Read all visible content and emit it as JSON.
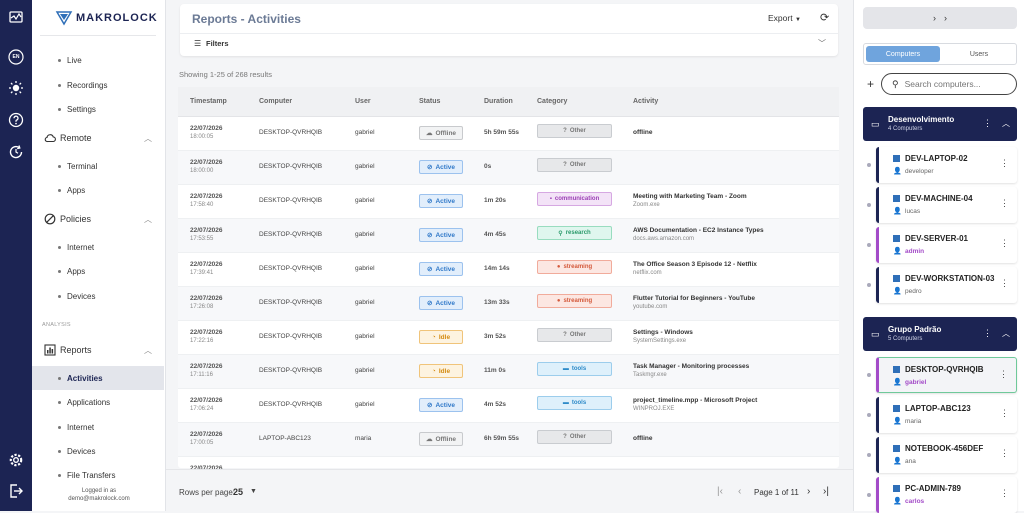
{
  "brand": {
    "name": "MAKROLOCK"
  },
  "rail": {
    "lang": "EN"
  },
  "sidebar": {
    "monitor_items": [
      "Live",
      "Recordings",
      "Settings"
    ],
    "remote": {
      "label": "Remote",
      "items": [
        "Terminal",
        "Apps"
      ]
    },
    "policies": {
      "label": "Policies",
      "items": [
        "Internet",
        "Apps",
        "Devices"
      ]
    },
    "section_label": "ANALYSIS",
    "reports": {
      "label": "Reports",
      "items": [
        "Activities",
        "Applications",
        "Internet",
        "Devices",
        "File Transfers"
      ]
    },
    "logged_label": "Logged in as",
    "logged_user": "demo@makrolock.com"
  },
  "header": {
    "title": "Reports - Activities",
    "export_label": "Export",
    "filters_label": "Filters"
  },
  "results_text": "Showing 1-25 of 268 results",
  "table": {
    "columns": [
      "Timestamp",
      "Computer",
      "User",
      "Status",
      "Duration",
      "Category",
      "Activity"
    ],
    "rows": [
      {
        "date": "22/07/2026",
        "time": "18:00:05",
        "computer": "DESKTOP-QVRHQIB",
        "user": "gabriel",
        "status": "Offline",
        "duration": "5h 59m 55s",
        "category": "Other",
        "activity": "offline",
        "detail": ""
      },
      {
        "date": "22/07/2026",
        "time": "18:00:00",
        "computer": "DESKTOP-QVRHQIB",
        "user": "gabriel",
        "status": "Active",
        "duration": "0s",
        "category": "Other",
        "activity": "",
        "detail": ""
      },
      {
        "date": "22/07/2026",
        "time": "17:58:40",
        "computer": "DESKTOP-QVRHQIB",
        "user": "gabriel",
        "status": "Active",
        "duration": "1m 20s",
        "category": "communication",
        "activity": "Meeting with Marketing Team - Zoom",
        "detail": "Zoom.exe"
      },
      {
        "date": "22/07/2026",
        "time": "17:53:55",
        "computer": "DESKTOP-QVRHQIB",
        "user": "gabriel",
        "status": "Active",
        "duration": "4m 45s",
        "category": "research",
        "activity": "AWS Documentation - EC2 Instance Types",
        "detail": "docs.aws.amazon.com"
      },
      {
        "date": "22/07/2026",
        "time": "17:39:41",
        "computer": "DESKTOP-QVRHQIB",
        "user": "gabriel",
        "status": "Active",
        "duration": "14m 14s",
        "category": "streaming",
        "activity": "The Office Season 3 Episode 12 - Netflix",
        "detail": "netflix.com"
      },
      {
        "date": "22/07/2026",
        "time": "17:26:08",
        "computer": "DESKTOP-QVRHQIB",
        "user": "gabriel",
        "status": "Active",
        "duration": "13m 33s",
        "category": "streaming",
        "activity": "Flutter Tutorial for Beginners - YouTube",
        "detail": "youtube.com"
      },
      {
        "date": "22/07/2026",
        "time": "17:22:16",
        "computer": "DESKTOP-QVRHQIB",
        "user": "gabriel",
        "status": "Idle",
        "duration": "3m 52s",
        "category": "Other",
        "activity": "Settings - Windows",
        "detail": "SystemSettings.exe"
      },
      {
        "date": "22/07/2026",
        "time": "17:11:16",
        "computer": "DESKTOP-QVRHQIB",
        "user": "gabriel",
        "status": "Idle",
        "duration": "11m 0s",
        "category": "tools",
        "activity": "Task Manager - Monitoring processes",
        "detail": "Taskmgr.exe"
      },
      {
        "date": "22/07/2026",
        "time": "17:06:24",
        "computer": "DESKTOP-QVRHQIB",
        "user": "gabriel",
        "status": "Active",
        "duration": "4m 52s",
        "category": "tools",
        "activity": "project_timeline.mpp - Microsoft Project",
        "detail": "WINPROJ.EXE"
      },
      {
        "date": "22/07/2026",
        "time": "17:00:05",
        "computer": "LAPTOP-ABC123",
        "user": "maria",
        "status": "Offline",
        "duration": "6h 59m 55s",
        "category": "Other",
        "activity": "offline",
        "detail": ""
      },
      {
        "date": "22/07/2026",
        "time": "",
        "computer": "",
        "user": "",
        "status": "",
        "duration": "",
        "category": "",
        "activity": "",
        "detail": ""
      }
    ]
  },
  "pagination": {
    "rows_label": "Rows per page:",
    "rows_value": "25",
    "page_text": "Page 1 of 11"
  },
  "right_panel": {
    "tabs": [
      "Computers",
      "Users"
    ],
    "search_placeholder": "Search computers...",
    "groups": [
      {
        "name": "Desenvolvimento",
        "count": "4 Computers",
        "computers": [
          {
            "name": "DEV-LAPTOP-02",
            "user": "developer",
            "accent": "navy"
          },
          {
            "name": "DEV-MACHINE-04",
            "user": "lucas",
            "accent": "navy"
          },
          {
            "name": "DEV-SERVER-01",
            "user": "admin",
            "accent": "purple"
          },
          {
            "name": "DEV-WORKSTATION-03",
            "user": "pedro",
            "accent": "navy"
          }
        ]
      },
      {
        "name": "Grupo Padrão",
        "count": "5 Computers",
        "computers": [
          {
            "name": "DESKTOP-QVRHQIB",
            "user": "gabriel",
            "accent": "purple",
            "selected": true
          },
          {
            "name": "LAPTOP-ABC123",
            "user": "maria",
            "accent": "navy"
          },
          {
            "name": "NOTEBOOK-456DEF",
            "user": "ana",
            "accent": "navy"
          },
          {
            "name": "PC-ADMIN-789",
            "user": "carlos",
            "accent": "purple"
          }
        ]
      }
    ]
  },
  "colors": {
    "navy": "#1c2453",
    "accent_blue": "#6fa4dd",
    "purple": "#a34bc8"
  }
}
